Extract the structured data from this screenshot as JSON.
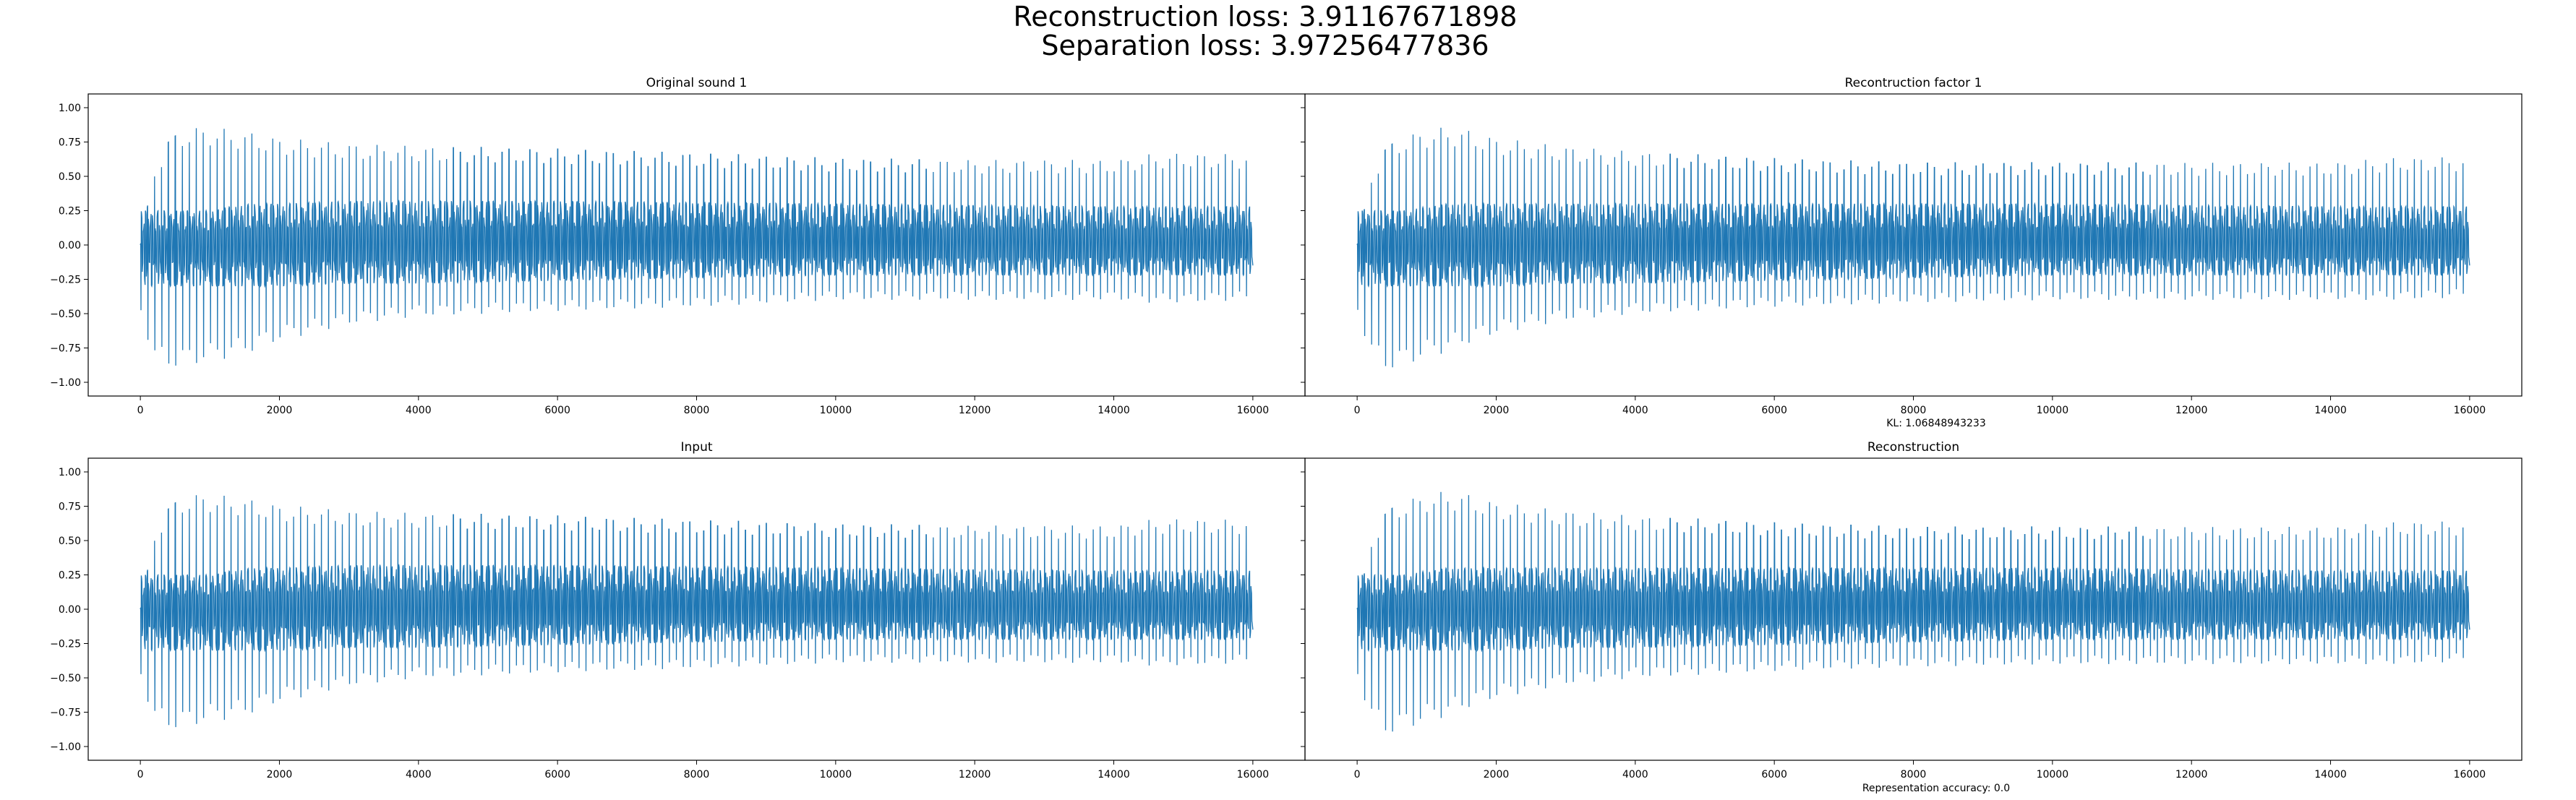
{
  "figure": {
    "suptitle_line1": "Reconstruction loss: 3.91167671898",
    "suptitle_line2": "Separation loss: 3.97256477836",
    "kl_note": "KL: 1.06848943233",
    "accuracy_note": "Representation accuracy: 0.0",
    "line_color": "#1f77b4"
  },
  "chart_data": [
    {
      "type": "line",
      "title": "Original sound 1",
      "xlabel": "",
      "ylabel": "",
      "xlim": [
        -750,
        16750
      ],
      "ylim": [
        -1.1,
        1.1
      ],
      "xticks": [
        0,
        2000,
        4000,
        6000,
        8000,
        10000,
        12000,
        14000,
        16000
      ],
      "xtick_labels": [
        "0",
        "2000",
        "4000",
        "6000",
        "8000",
        "10000",
        "12000",
        "14000",
        "16000"
      ],
      "yticks": [
        1.0,
        0.75,
        0.5,
        0.25,
        0.0,
        -0.25,
        -0.5,
        -0.75,
        -1.0
      ],
      "ytick_labels": [
        "1.00",
        "0.75",
        "0.50",
        "0.25",
        "0.00",
        "−0.25",
        "−0.50",
        "−0.75",
        "−1.00"
      ],
      "grid": false,
      "series": [
        {
          "color": "#1f77b4",
          "n_samples": 16000,
          "num_pulses": 160,
          "envelope": {
            "x": [
              0,
              200,
              400,
              700,
              1000,
              1300,
              1600,
              2000,
              3000,
              4000,
              6000,
              8000,
              10000,
              12000,
              14000,
              14500,
              15000,
              16000
            ],
            "peak_max": [
              0.0,
              0.55,
              0.78,
              0.86,
              0.86,
              0.84,
              0.82,
              0.78,
              0.74,
              0.72,
              0.7,
              0.67,
              0.63,
              0.62,
              0.62,
              0.66,
              0.67,
              0.66
            ],
            "trough_min": [
              -0.5,
              -0.85,
              -0.9,
              -0.88,
              -0.85,
              -0.82,
              -0.78,
              -0.7,
              -0.58,
              -0.52,
              -0.48,
              -0.45,
              -0.4,
              -0.4,
              -0.4,
              -0.42,
              -0.42,
              -0.4
            ],
            "band_hi": [
              0.25,
              0.25,
              0.25,
              0.25,
              0.25,
              0.28,
              0.3,
              0.3,
              0.32,
              0.32,
              0.32,
              0.31,
              0.3,
              0.29,
              0.28,
              0.28,
              0.28,
              0.28
            ],
            "band_lo": [
              -0.3,
              -0.3,
              -0.3,
              -0.3,
              -0.3,
              -0.3,
              -0.3,
              -0.3,
              -0.28,
              -0.28,
              -0.26,
              -0.24,
              -0.22,
              -0.22,
              -0.22,
              -0.22,
              -0.22,
              -0.22
            ]
          }
        }
      ]
    },
    {
      "type": "line",
      "title": "Recontruction factor 1",
      "xlabel": "",
      "ylabel": "",
      "xlim": [
        -750,
        16750
      ],
      "ylim": [
        -1.1,
        1.1
      ],
      "xticks": [
        0,
        2000,
        4000,
        6000,
        8000,
        10000,
        12000,
        14000,
        16000
      ],
      "xtick_labels": [
        "0",
        "2000",
        "4000",
        "6000",
        "8000",
        "10000",
        "12000",
        "14000",
        "16000"
      ],
      "grid": false,
      "series": [
        {
          "color": "#1f77b4",
          "n_samples": 16000,
          "num_pulses": 160,
          "envelope": {
            "x": [
              0,
              200,
              400,
              700,
              1000,
              1300,
              1600,
              2000,
              3000,
              4000,
              6000,
              8000,
              10000,
              12000,
              14000,
              14500,
              15000,
              16000
            ],
            "peak_max": [
              0.0,
              0.5,
              0.72,
              0.8,
              0.84,
              0.86,
              0.84,
              0.78,
              0.72,
              0.68,
              0.63,
              0.6,
              0.6,
              0.6,
              0.6,
              0.62,
              0.64,
              0.64
            ],
            "trough_min": [
              -0.5,
              -0.8,
              -0.92,
              -0.88,
              -0.82,
              -0.78,
              -0.72,
              -0.65,
              -0.55,
              -0.5,
              -0.45,
              -0.42,
              -0.4,
              -0.4,
              -0.4,
              -0.4,
              -0.4,
              -0.38
            ],
            "band_hi": [
              0.25,
              0.25,
              0.25,
              0.25,
              0.28,
              0.3,
              0.3,
              0.3,
              0.3,
              0.3,
              0.3,
              0.3,
              0.3,
              0.29,
              0.28,
              0.28,
              0.28,
              0.28
            ],
            "band_lo": [
              -0.3,
              -0.3,
              -0.3,
              -0.3,
              -0.3,
              -0.3,
              -0.3,
              -0.3,
              -0.28,
              -0.28,
              -0.26,
              -0.24,
              -0.22,
              -0.22,
              -0.22,
              -0.22,
              -0.22,
              -0.22
            ]
          }
        }
      ]
    },
    {
      "type": "line",
      "title": "Input",
      "xlabel": "",
      "ylabel": "",
      "xlim": [
        -750,
        16750
      ],
      "ylim": [
        -1.1,
        1.1
      ],
      "xticks": [
        0,
        2000,
        4000,
        6000,
        8000,
        10000,
        12000,
        14000,
        16000
      ],
      "xtick_labels": [
        "0",
        "2000",
        "4000",
        "6000",
        "8000",
        "10000",
        "12000",
        "14000",
        "16000"
      ],
      "yticks": [
        1.0,
        0.75,
        0.5,
        0.25,
        0.0,
        -0.25,
        -0.5,
        -0.75,
        -1.0
      ],
      "ytick_labels": [
        "1.00",
        "0.75",
        "0.50",
        "0.25",
        "0.00",
        "−0.25",
        "−0.50",
        "−0.75",
        "−1.00"
      ],
      "grid": false,
      "series": [
        {
          "color": "#1f77b4",
          "n_samples": 16000,
          "num_pulses": 160,
          "envelope": {
            "x": [
              0,
              200,
              400,
              700,
              1000,
              1300,
              1600,
              2000,
              3000,
              4000,
              6000,
              8000,
              10000,
              12000,
              14000,
              14500,
              15000,
              16000
            ],
            "peak_max": [
              0.0,
              0.55,
              0.76,
              0.84,
              0.84,
              0.82,
              0.8,
              0.76,
              0.72,
              0.7,
              0.68,
              0.65,
              0.62,
              0.61,
              0.61,
              0.65,
              0.66,
              0.65
            ],
            "trough_min": [
              -0.5,
              -0.82,
              -0.88,
              -0.86,
              -0.82,
              -0.8,
              -0.76,
              -0.68,
              -0.56,
              -0.5,
              -0.46,
              -0.43,
              -0.39,
              -0.39,
              -0.39,
              -0.41,
              -0.41,
              -0.39
            ],
            "band_hi": [
              0.25,
              0.25,
              0.25,
              0.25,
              0.25,
              0.28,
              0.3,
              0.3,
              0.32,
              0.32,
              0.32,
              0.31,
              0.3,
              0.29,
              0.28,
              0.28,
              0.28,
              0.28
            ],
            "band_lo": [
              -0.3,
              -0.3,
              -0.3,
              -0.3,
              -0.3,
              -0.3,
              -0.3,
              -0.3,
              -0.28,
              -0.28,
              -0.26,
              -0.24,
              -0.22,
              -0.22,
              -0.22,
              -0.22,
              -0.22,
              -0.22
            ]
          }
        }
      ]
    },
    {
      "type": "line",
      "title": "Reconstruction",
      "xlabel": "",
      "ylabel": "",
      "xlim": [
        -750,
        16750
      ],
      "ylim": [
        -1.1,
        1.1
      ],
      "xticks": [
        0,
        2000,
        4000,
        6000,
        8000,
        10000,
        12000,
        14000,
        16000
      ],
      "xtick_labels": [
        "0",
        "2000",
        "4000",
        "6000",
        "8000",
        "10000",
        "12000",
        "14000",
        "16000"
      ],
      "grid": false,
      "series": [
        {
          "color": "#1f77b4",
          "n_samples": 16000,
          "num_pulses": 160,
          "envelope": {
            "x": [
              0,
              200,
              400,
              700,
              1000,
              1300,
              1600,
              2000,
              3000,
              4000,
              6000,
              8000,
              10000,
              12000,
              14000,
              14500,
              15000,
              16000
            ],
            "peak_max": [
              0.0,
              0.5,
              0.72,
              0.8,
              0.84,
              0.86,
              0.84,
              0.78,
              0.72,
              0.68,
              0.63,
              0.6,
              0.6,
              0.6,
              0.6,
              0.62,
              0.64,
              0.64
            ],
            "trough_min": [
              -0.5,
              -0.8,
              -0.92,
              -0.88,
              -0.82,
              -0.78,
              -0.72,
              -0.65,
              -0.55,
              -0.5,
              -0.45,
              -0.42,
              -0.4,
              -0.4,
              -0.4,
              -0.4,
              -0.4,
              -0.38
            ],
            "band_hi": [
              0.25,
              0.25,
              0.25,
              0.25,
              0.28,
              0.3,
              0.3,
              0.3,
              0.3,
              0.3,
              0.3,
              0.3,
              0.3,
              0.29,
              0.28,
              0.28,
              0.28,
              0.28
            ],
            "band_lo": [
              -0.3,
              -0.3,
              -0.3,
              -0.3,
              -0.3,
              -0.3,
              -0.3,
              -0.3,
              -0.28,
              -0.28,
              -0.26,
              -0.24,
              -0.22,
              -0.22,
              -0.22,
              -0.22,
              -0.22,
              -0.22
            ]
          }
        }
      ]
    }
  ]
}
